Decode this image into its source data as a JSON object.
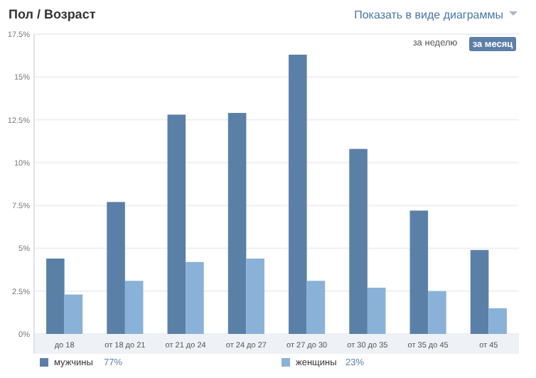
{
  "chart_data": {
    "type": "bar",
    "title": "Пол / Возраст",
    "categories": [
      "до 18",
      "от 18 до 21",
      "от 21 до 24",
      "от 24 до 27",
      "от 27 до 30",
      "от 30 до 35",
      "от 35 до 45",
      "от 45"
    ],
    "series": [
      {
        "name": "мужчины",
        "color": "#5b80a8",
        "values": [
          4.4,
          7.7,
          12.8,
          12.9,
          16.3,
          10.8,
          7.2,
          4.9
        ]
      },
      {
        "name": "женщины",
        "color": "#8ab1d8",
        "values": [
          2.3,
          3.1,
          4.2,
          4.4,
          3.1,
          2.7,
          2.5,
          1.5
        ]
      }
    ],
    "ylim": [
      0,
      17.5
    ],
    "yticks": [
      {
        "value": 0,
        "label": "0%"
      },
      {
        "value": 2.5,
        "label": "2.5%"
      },
      {
        "value": 5,
        "label": "5%"
      },
      {
        "value": 7.5,
        "label": "7.5%"
      },
      {
        "value": 10,
        "label": "10%"
      },
      {
        "value": 12.5,
        "label": "12.5%"
      },
      {
        "value": 15,
        "label": "15%"
      },
      {
        "value": 17.5,
        "label": "17.5%"
      }
    ],
    "grid": "y",
    "legend": "bottom left",
    "annotations": [
      "Показать в виде диаграммы",
      "за неделю",
      "за месяц",
      "77%",
      "23%"
    ]
  }
}
